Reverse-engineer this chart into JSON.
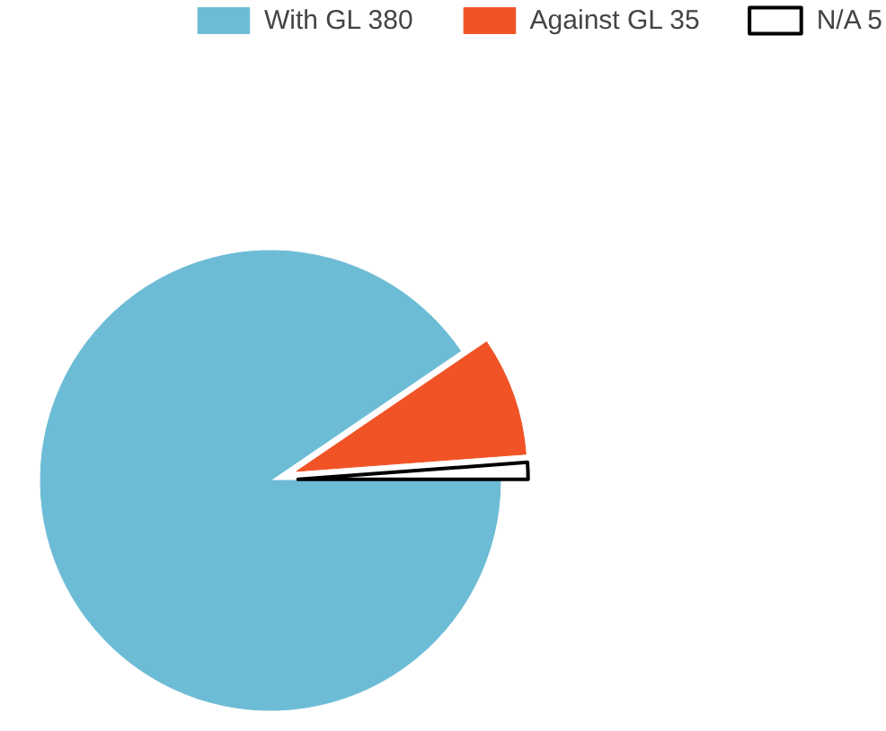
{
  "chart_data": {
    "type": "pie",
    "categories": [
      "With GL 380",
      "Against GL 35",
      "N/A 5"
    ],
    "values": [
      380,
      35,
      5
    ],
    "colors": [
      "#6dbcd6",
      "#f05326",
      "#ffffff"
    ],
    "legend": "top right"
  }
}
